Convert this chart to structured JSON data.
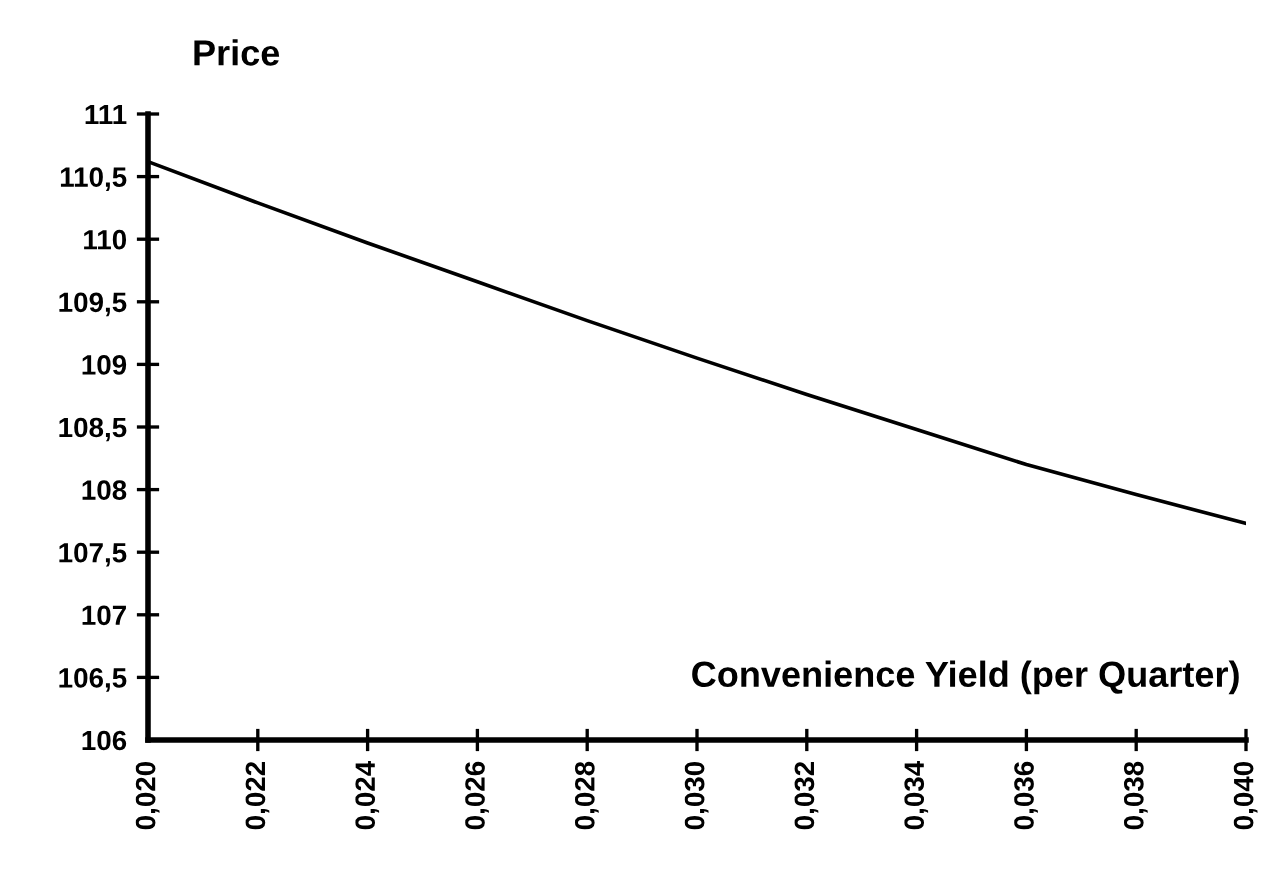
{
  "chart_data": {
    "type": "line",
    "ylabel": "Price",
    "xlabel": "Convenience Yield (per Quarter)",
    "x": [
      0.02,
      0.022,
      0.024,
      0.026,
      0.028,
      0.03,
      0.032,
      0.034,
      0.036,
      0.038,
      0.04
    ],
    "series": [
      {
        "color": "#000000",
        "values": [
          110.62,
          110.29,
          109.97,
          109.66,
          109.35,
          109.05,
          108.76,
          108.48,
          108.2,
          107.96,
          107.73
        ]
      }
    ],
    "xlim": [
      0.02,
      0.04
    ],
    "xticks": [
      {
        "value": 0.02,
        "label": "0,020"
      },
      {
        "value": 0.022,
        "label": "0,022"
      },
      {
        "value": 0.024,
        "label": "0,024"
      },
      {
        "value": 0.026,
        "label": "0,026"
      },
      {
        "value": 0.028,
        "label": "0,028"
      },
      {
        "value": 0.03,
        "label": "0,030"
      },
      {
        "value": 0.032,
        "label": "0,032"
      },
      {
        "value": 0.034,
        "label": "0,034"
      },
      {
        "value": 0.036,
        "label": "0,036"
      },
      {
        "value": 0.038,
        "label": "0,038"
      },
      {
        "value": 0.04,
        "label": "0,040"
      }
    ],
    "ylim": [
      106,
      111
    ],
    "yticks": [
      106,
      {
        "value": 106.5,
        "label": "106,5"
      },
      107,
      {
        "value": 107.5,
        "label": "107,5"
      },
      108,
      {
        "value": 108.5,
        "label": "108,5"
      },
      109,
      {
        "value": 109.5,
        "label": "109,5"
      },
      110,
      {
        "value": 110.5,
        "label": "110,5"
      },
      111
    ],
    "grid": false,
    "legend": false,
    "marker": "none",
    "line_style": "solid"
  }
}
